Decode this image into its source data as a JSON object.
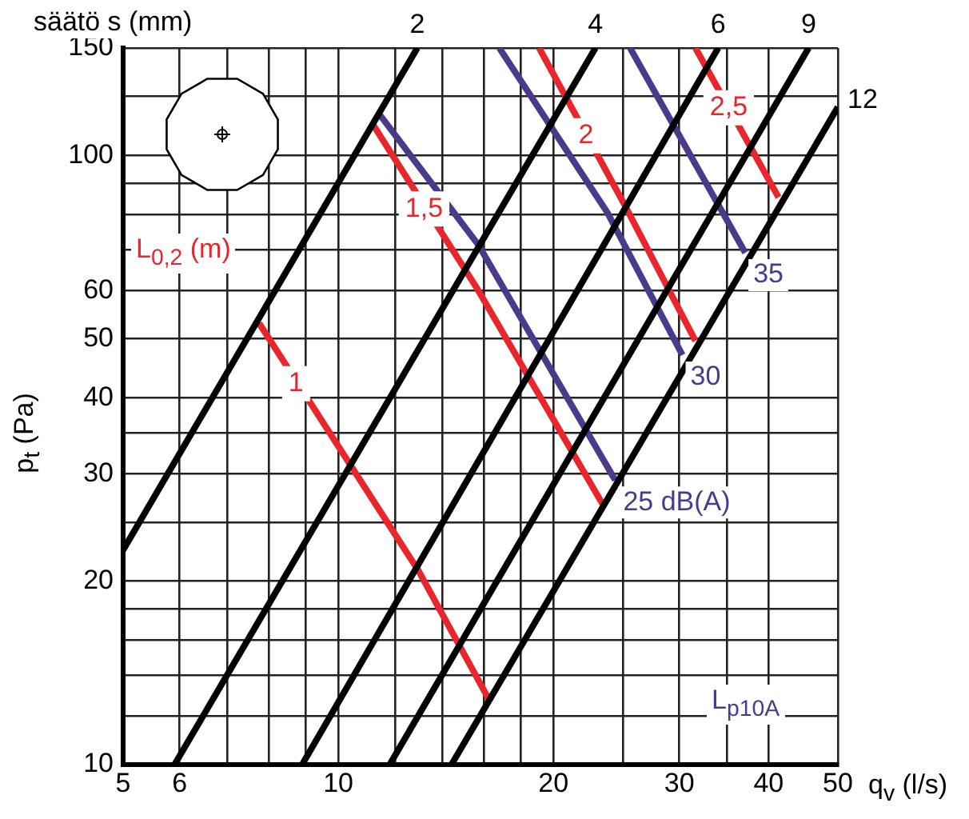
{
  "chart_data": {
    "type": "line",
    "xlabel": "q$_{v}$ (l/s)",
    "ylabel": "p$_{t}$ (Pa)",
    "annotations": [
      "säätö s (mm)",
      "L$_{0,2}$ (m)",
      "L$_{p10A}$"
    ],
    "log": "xy",
    "grid": true,
    "legend": false,
    "marker": "none",
    "line_style": "solid",
    "xlim": [
      5,
      50
    ],
    "xticks": [
      5,
      6,
      {
        "value": 7,
        "label": null
      },
      {
        "value": 8,
        "label": null
      },
      {
        "value": 9,
        "label": null
      },
      10,
      {
        "value": 12,
        "label": null
      },
      {
        "value": 14,
        "label": null
      },
      {
        "value": 16,
        "label": null
      },
      {
        "value": 18,
        "label": null
      },
      20,
      {
        "value": 25,
        "label": null
      },
      30,
      {
        "value": 35,
        "label": null
      },
      40,
      50
    ],
    "ylim": [
      10,
      150
    ],
    "yticks": [
      10,
      {
        "value": 12,
        "label": null
      },
      {
        "value": 14,
        "label": null
      },
      {
        "value": 16,
        "label": null
      },
      {
        "value": 18,
        "label": null
      },
      20,
      {
        "value": 25,
        "label": null
      },
      30,
      {
        "value": 35,
        "label": null
      },
      40,
      50,
      60,
      {
        "value": 70,
        "label": null
      },
      {
        "value": 80,
        "label": null
      },
      {
        "value": 90,
        "label": null
      },
      100,
      {
        "value": 125,
        "label": null
      },
      150
    ],
    "series": [
      {
        "name": "2",
        "color": "#000000",
        "x": [
          5,
          12.9
        ],
        "values": [
          22.5,
          150
        ]
      },
      {
        "name": "4",
        "color": "#000000",
        "x": [
          5.9,
          22.9
        ],
        "values": [
          10,
          150
        ]
      },
      {
        "name": "6",
        "color": "#000000",
        "x": [
          8.9,
          34
        ],
        "values": [
          10,
          150
        ]
      },
      {
        "name": "9",
        "color": "#000000",
        "x": [
          11.8,
          45.5
        ],
        "values": [
          10,
          150
        ]
      },
      {
        "name": "12",
        "color": "#000000",
        "x": [
          14.4,
          50
        ],
        "values": [
          10,
          120
        ]
      },
      {
        "name": "1",
        "color": "#e8262b",
        "x": [
          7.75,
          12.95,
          16.3
        ],
        "values": [
          53,
          20.8,
          12.7
        ]
      },
      {
        "name": "1,5",
        "color": "#e8262b",
        "x": [
          11.2,
          15.7,
          23.5
        ],
        "values": [
          112,
          60,
          26.6
        ]
      },
      {
        "name": "2",
        "color": "#e8262b",
        "x": [
          19.1,
          25.1,
          31.6
        ],
        "values": [
          150,
          83.3,
          49.6
        ]
      },
      {
        "name": "2,5",
        "color": "#e8262b",
        "x": [
          31.6,
          41.3
        ],
        "values": [
          150,
          85.3
        ]
      },
      {
        "name": "25 dB(A)",
        "color": "#4b3a8c",
        "x": [
          11.4,
          15.7,
          24.4
        ],
        "values": [
          117,
          71.3,
          29.3
        ]
      },
      {
        "name": "30",
        "color": "#4b3a8c",
        "x": [
          16.8,
          23.8,
          30.3
        ],
        "values": [
          150,
          80.5,
          47
        ]
      },
      {
        "name": "35",
        "color": "#4b3a8c",
        "x": [
          25.6,
          37.1
        ],
        "values": [
          150,
          69.2
        ]
      }
    ]
  }
}
